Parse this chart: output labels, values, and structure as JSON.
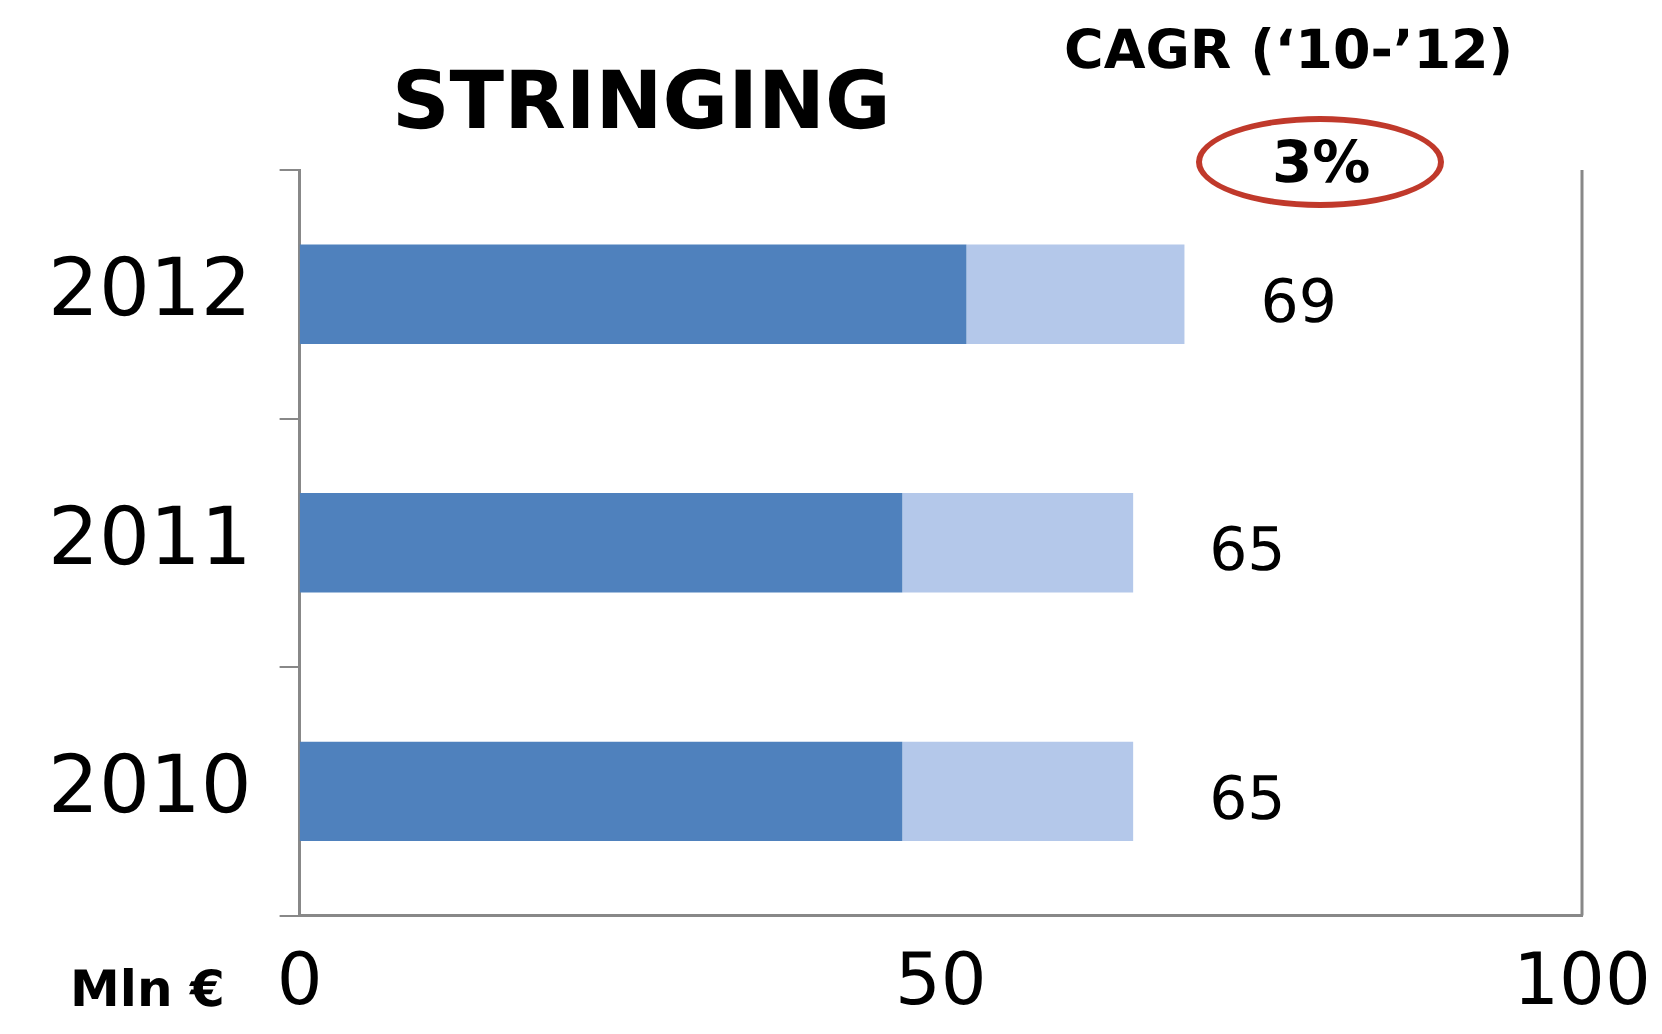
{
  "chart_data": {
    "type": "bar",
    "title": "STRINGING",
    "orientation": "horizontal",
    "stacked": true,
    "categories": [
      "2012",
      "2011",
      "2010"
    ],
    "series": [
      {
        "color": "#4f81bd",
        "values": [
          52,
          47,
          47
        ]
      },
      {
        "color": "#b4c8ea",
        "values": [
          17,
          18,
          18
        ]
      }
    ],
    "totals": [
      "69",
      "65",
      "65"
    ],
    "xlim": [
      0,
      100
    ],
    "xticks": [
      0,
      50,
      100
    ],
    "grid": false,
    "legend": false,
    "annotations": [
      "CAGR (‘10-’12)",
      "3%",
      "Mln €"
    ]
  }
}
